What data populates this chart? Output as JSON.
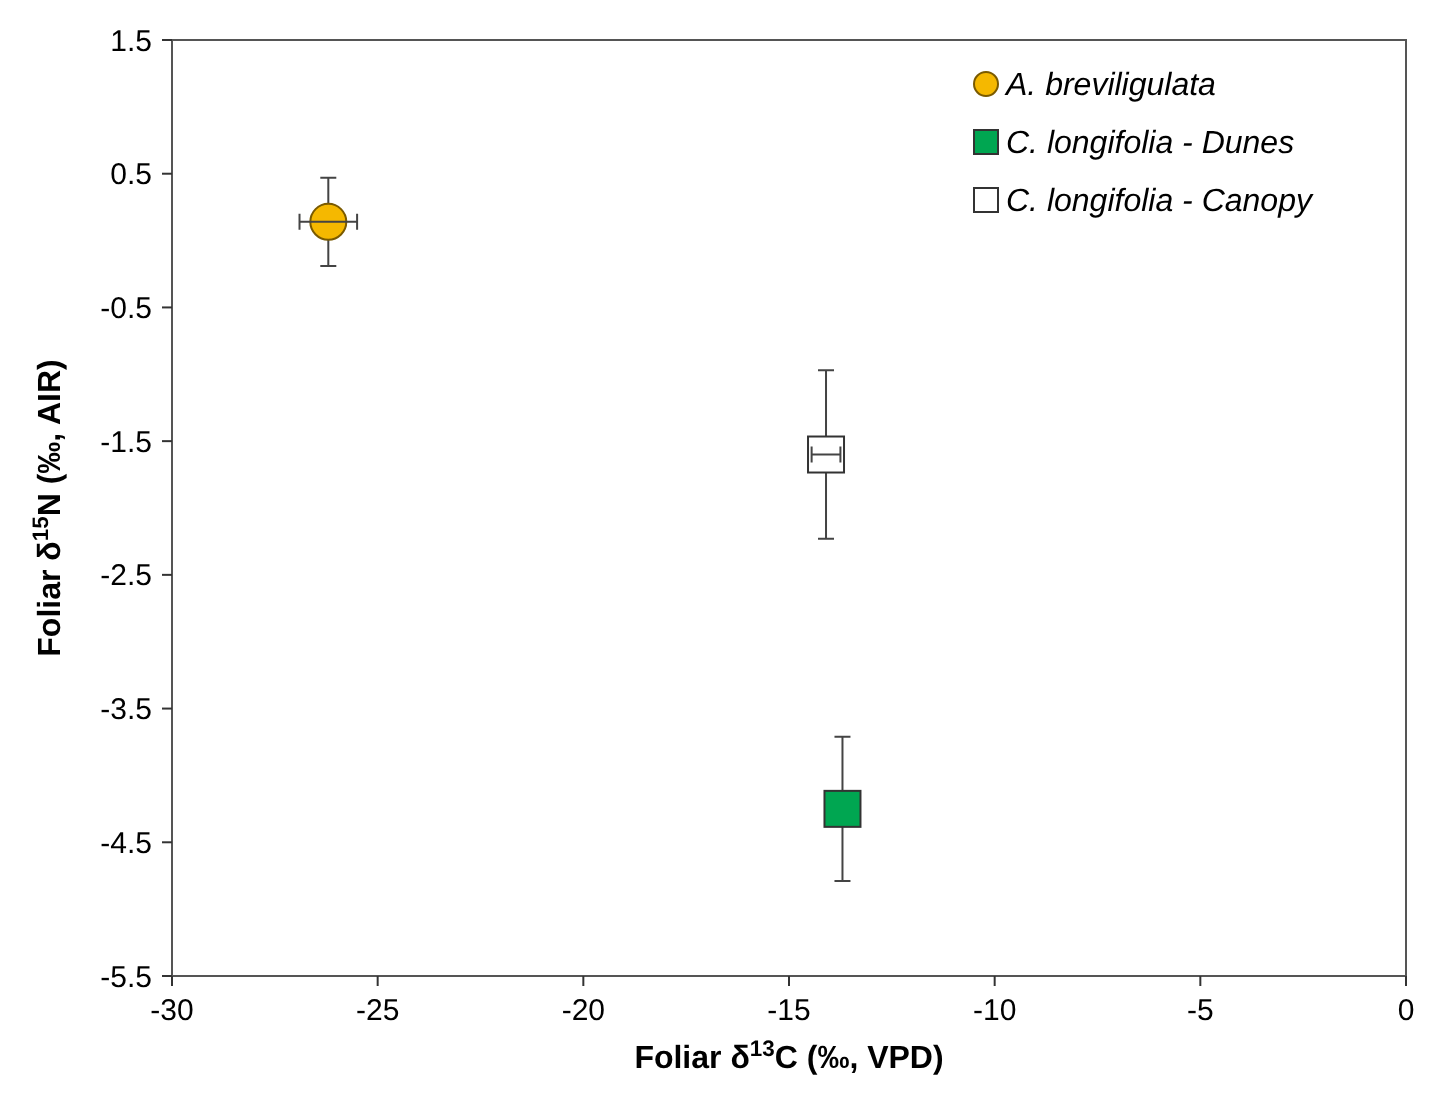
{
  "chart_data": {
    "type": "scatter",
    "xlabel": "Foliar δ$^{13}$C (‰, VPD)",
    "ylabel": "Foliar δ$^{15}$N  (‰, AIR)",
    "xlim": [
      -30,
      0
    ],
    "xticks": [
      -30,
      -25,
      -20,
      -15,
      -10,
      -5,
      0
    ],
    "ylim": [
      -5.5,
      1.5
    ],
    "yticks": [
      {
        "value": 1.5,
        "label": "1.5"
      },
      {
        "value": 0.5,
        "label": "0.5"
      },
      {
        "value": -0.5,
        "label": "-0.5"
      },
      {
        "value": -1.5,
        "label": "-1.5"
      },
      {
        "value": -2.5,
        "label": "-2.5"
      },
      {
        "value": -3.5,
        "label": "-3.5"
      },
      {
        "value": -4.5,
        "label": "-4.5"
      },
      {
        "value": -5.5,
        "label": "-5.5"
      }
    ],
    "grid": false,
    "legend": "top right",
    "series": [
      {
        "name": "A. breviligulata",
        "color": "#f5b800",
        "marker": "circle",
        "x": [
          -26.2
        ],
        "values": [
          0.14
        ],
        "errors": [
          0.33
        ],
        "xerrors": [
          0.7
        ]
      },
      {
        "name": "C. longifolia - Dunes",
        "color": "#00a651",
        "marker": "square",
        "x": [
          -13.7
        ],
        "values": [
          -4.25
        ],
        "errors": [
          0.54
        ],
        "xerrors": [
          null
        ]
      },
      {
        "name": "C. longifolia - Canopy",
        "color": "#ffffff",
        "marker": "square",
        "x": [
          -14.1
        ],
        "values": [
          -1.6
        ],
        "errors": [
          0.63
        ],
        "xerrors": [
          0.35
        ]
      }
    ]
  }
}
